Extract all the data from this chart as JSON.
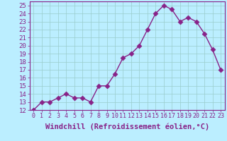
{
  "x": [
    0,
    1,
    2,
    3,
    4,
    5,
    6,
    7,
    8,
    9,
    10,
    11,
    12,
    13,
    14,
    15,
    16,
    17,
    18,
    19,
    20,
    21,
    22,
    23
  ],
  "y": [
    12,
    13,
    13,
    13.5,
    14,
    13.5,
    13.5,
    13,
    15,
    15,
    16.5,
    18.5,
    19,
    20,
    22,
    24,
    25,
    24.5,
    23,
    23.5,
    23,
    21.5,
    19.5,
    17
  ],
  "line_color": "#882288",
  "marker_color": "#882288",
  "background_color": "#BBEEFF",
  "grid_color": "#99CCCC",
  "xlabel": "Windchill (Refroidissement éolien,°C)",
  "xlim": [
    -0.5,
    23.5
  ],
  "ylim": [
    12,
    25.5
  ],
  "yticks": [
    12,
    13,
    14,
    15,
    16,
    17,
    18,
    19,
    20,
    21,
    22,
    23,
    24,
    25
  ],
  "xtick_labels": [
    "0",
    "1",
    "2",
    "3",
    "4",
    "5",
    "6",
    "7",
    "8",
    "9",
    "10",
    "11",
    "12",
    "13",
    "14",
    "15",
    "16",
    "17",
    "18",
    "19",
    "20",
    "21",
    "22",
    "23"
  ],
  "tick_color": "#882288",
  "xlabel_color": "#882288",
  "xlabel_fontsize": 7.5,
  "ytick_fontsize": 6.5,
  "xtick_fontsize": 6.0,
  "line_width": 1.0,
  "marker_size": 3.5
}
